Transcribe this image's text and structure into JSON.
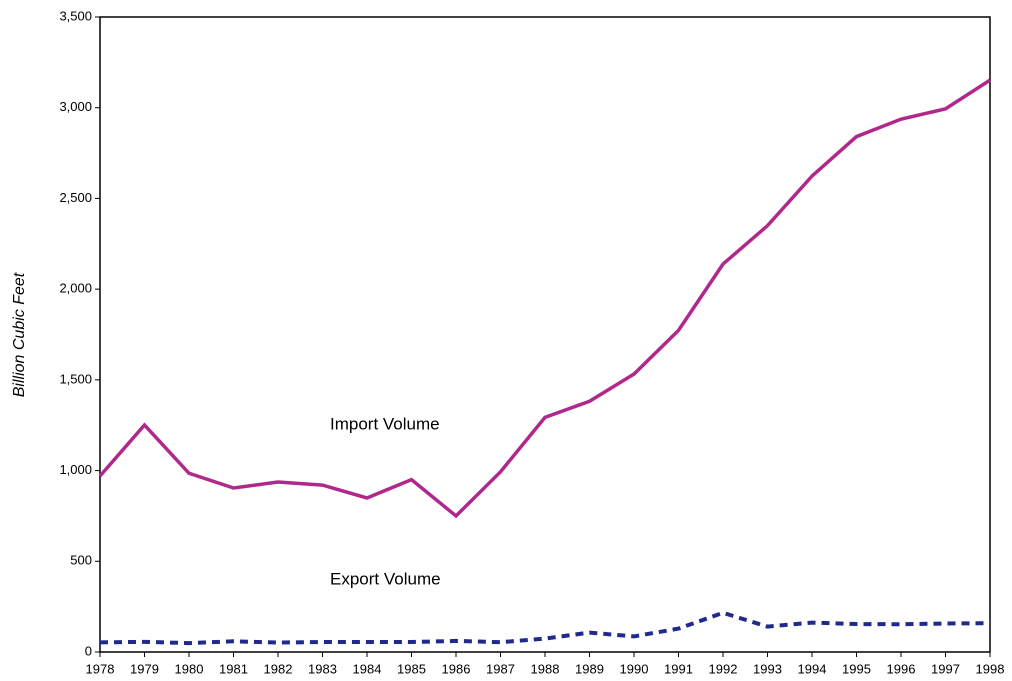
{
  "chart_data": {
    "type": "line",
    "y_label": "Billion Cubic Feet",
    "x": [
      1978,
      1979,
      1980,
      1981,
      1982,
      1983,
      1984,
      1985,
      1986,
      1987,
      1988,
      1989,
      1990,
      1991,
      1992,
      1993,
      1994,
      1995,
      1996,
      1997,
      1998
    ],
    "series": [
      {
        "name": "Import Volume",
        "color": "#b0288c",
        "dash": false,
        "values": [
          970,
          1251,
          985,
          904,
          937,
          920,
          849,
          950,
          750,
          993,
          1293,
          1382,
          1532,
          1773,
          2138,
          2350,
          2623,
          2841,
          2937,
          2994,
          3152
        ]
      },
      {
        "name": "Export Volume",
        "color": "#1f2a8c",
        "dash": true,
        "values": [
          53,
          56,
          49,
          59,
          52,
          55,
          55,
          55,
          61,
          54,
          74,
          107,
          86,
          129,
          216,
          140,
          162,
          154,
          153,
          157,
          159
        ]
      }
    ],
    "xlim": [
      1978,
      1998
    ],
    "xticks": [
      1978,
      1979,
      1980,
      1981,
      1982,
      1983,
      1984,
      1985,
      1986,
      1987,
      1988,
      1989,
      1990,
      1991,
      1992,
      1993,
      1994,
      1995,
      1996,
      1997,
      1998
    ],
    "ylim": [
      0,
      3500
    ],
    "yticks": [
      0,
      500,
      {
        "value": 1000,
        "label": "1,000"
      },
      {
        "value": 1500,
        "label": "1,500"
      },
      {
        "value": 2000,
        "label": "2,000"
      },
      {
        "value": 2500,
        "label": "2,500"
      },
      {
        "value": 3000,
        "label": "3,000"
      },
      {
        "value": 3500,
        "label": "3,500"
      }
    ],
    "grid": false
  }
}
